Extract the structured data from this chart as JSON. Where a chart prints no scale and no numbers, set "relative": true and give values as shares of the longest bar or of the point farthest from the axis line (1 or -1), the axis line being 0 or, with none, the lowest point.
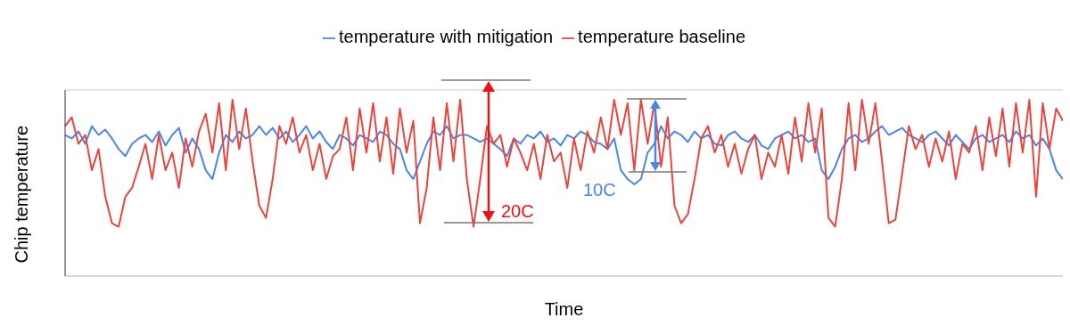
{
  "chart_data": {
    "type": "line",
    "relative": true,
    "xlabel": "Time",
    "ylabel": "Chip temperature",
    "legend": "top",
    "grid": "y",
    "marker": "none",
    "line_style": "solid",
    "annotations": [
      "20C",
      "10C"
    ],
    "categories": [
      null,
      null,
      null,
      null,
      null,
      null,
      null,
      null,
      null,
      null,
      null,
      null,
      null,
      null,
      null,
      null,
      null,
      null,
      null,
      null,
      null,
      null,
      null,
      null,
      null,
      null,
      null,
      null,
      null,
      null,
      null,
      null,
      null,
      null,
      null,
      null,
      null,
      null,
      null,
      null,
      null,
      null,
      null,
      null,
      null,
      null,
      null,
      null,
      null,
      null,
      null,
      null,
      null,
      null,
      null,
      null,
      null,
      null,
      null,
      null,
      null,
      null,
      null,
      null,
      null,
      null,
      null,
      null,
      null,
      null,
      null,
      null,
      null,
      null,
      null,
      null,
      null,
      null,
      null,
      null,
      null,
      null,
      null,
      null,
      null,
      null,
      null,
      null,
      null,
      null,
      null,
      null,
      null,
      null,
      null,
      null,
      null,
      null,
      null,
      null,
      null,
      null,
      null,
      null,
      null,
      null,
      null,
      null,
      null,
      null,
      null,
      null,
      null,
      null,
      null,
      null,
      null,
      null,
      null,
      null,
      null,
      null,
      null,
      null,
      null,
      null,
      null,
      null,
      null,
      null,
      null,
      null,
      null,
      null,
      null,
      null,
      null,
      null,
      null,
      null,
      null,
      null,
      null,
      null,
      null,
      null,
      null,
      null,
      null,
      null
    ],
    "series": [
      {
        "name": "temperature with mitigation",
        "color": "#4a86e8",
        "values": [
          0.8,
          0.78,
          0.82,
          0.75,
          0.85,
          0.8,
          0.83,
          0.78,
          0.72,
          0.68,
          0.75,
          0.78,
          0.8,
          0.76,
          0.82,
          0.74,
          0.8,
          0.84,
          0.7,
          0.78,
          0.72,
          0.6,
          0.55,
          0.7,
          0.8,
          0.76,
          0.82,
          0.78,
          0.8,
          0.85,
          0.8,
          0.84,
          0.78,
          0.82,
          0.76,
          0.8,
          0.85,
          0.78,
          0.82,
          0.76,
          0.72,
          0.8,
          0.78,
          0.74,
          0.8,
          0.78,
          0.76,
          0.82,
          0.8,
          0.75,
          0.72,
          0.6,
          0.55,
          0.65,
          0.75,
          0.82,
          0.8,
          0.85,
          0.78,
          0.8,
          0.8,
          0.78,
          0.76,
          0.78,
          0.75,
          0.72,
          0.68,
          0.78,
          0.75,
          0.8,
          0.78,
          0.82,
          0.76,
          0.78,
          0.74,
          0.8,
          0.78,
          0.82,
          0.8,
          0.76,
          0.75,
          0.72,
          0.78,
          0.6,
          0.55,
          0.52,
          0.55,
          0.7,
          0.75,
          0.85,
          0.78,
          0.82,
          0.8,
          0.76,
          0.82,
          0.78,
          0.8,
          0.75,
          0.74,
          0.8,
          0.82,
          0.78,
          0.76,
          0.8,
          0.74,
          0.72,
          0.78,
          0.8,
          0.82,
          0.78,
          0.8,
          0.76,
          0.78,
          0.6,
          0.55,
          0.62,
          0.72,
          0.78,
          0.8,
          0.76,
          0.78,
          0.82,
          0.85,
          0.8,
          0.82,
          0.84,
          0.8,
          0.78,
          0.76,
          0.8,
          0.82,
          0.78,
          0.74,
          0.8,
          0.76,
          0.72,
          0.78,
          0.8,
          0.76,
          0.78,
          0.8,
          0.76,
          0.82,
          0.78,
          0.8,
          0.74,
          0.78,
          0.72,
          0.6,
          0.55
        ]
      },
      {
        "name": "temperature baseline",
        "color": "#e8453c",
        "values": [
          0.85,
          0.9,
          0.75,
          0.8,
          0.6,
          0.72,
          0.45,
          0.3,
          0.28,
          0.45,
          0.5,
          0.62,
          0.75,
          0.55,
          0.8,
          0.6,
          0.7,
          0.5,
          0.78,
          0.62,
          0.82,
          0.92,
          0.7,
          0.98,
          0.6,
          1.0,
          0.72,
          0.95,
          0.65,
          0.4,
          0.33,
          0.55,
          0.85,
          0.75,
          0.9,
          0.7,
          0.8,
          0.6,
          0.75,
          0.55,
          0.68,
          0.72,
          0.9,
          0.6,
          0.95,
          0.7,
          0.98,
          0.65,
          0.9,
          0.58,
          0.95,
          0.7,
          0.88,
          0.3,
          0.5,
          0.9,
          0.6,
          0.98,
          0.65,
          1.0,
          0.55,
          0.28,
          0.55,
          0.85,
          0.75,
          0.8,
          0.62,
          0.78,
          0.7,
          0.6,
          0.75,
          0.55,
          0.8,
          0.65,
          0.7,
          0.5,
          0.78,
          0.6,
          0.82,
          0.7,
          0.9,
          0.72,
          1.0,
          0.8,
          0.98,
          0.6,
          1.0,
          0.75,
          0.98,
          0.62,
          0.9,
          0.4,
          0.3,
          0.35,
          0.55,
          0.78,
          0.85,
          0.7,
          0.8,
          0.62,
          0.75,
          0.58,
          0.72,
          0.8,
          0.55,
          0.7,
          0.62,
          0.8,
          0.58,
          0.9,
          0.65,
          0.98,
          0.7,
          0.95,
          0.33,
          0.28,
          0.55,
          0.98,
          0.6,
          1.0,
          0.75,
          0.98,
          0.65,
          0.3,
          0.32,
          0.58,
          0.85,
          0.72,
          0.8,
          0.62,
          0.78,
          0.65,
          0.82,
          0.55,
          0.75,
          0.7,
          0.85,
          0.6,
          0.9,
          0.68,
          0.95,
          0.62,
          0.98,
          0.7,
          1.0,
          0.45,
          0.98,
          0.72,
          0.95,
          0.88
        ]
      }
    ]
  }
}
